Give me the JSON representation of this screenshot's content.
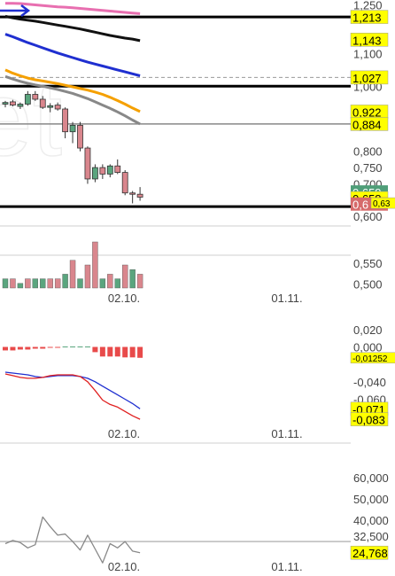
{
  "chart_data": [
    {
      "panel": "price",
      "type": "candlestick",
      "axis_ticks": [
        "1,250",
        "1,100",
        "1,000",
        "0,800",
        "0,750",
        "0,700",
        "0,600"
      ],
      "scale_labels": [
        {
          "text": "1,250",
          "y": 1.25
        },
        {
          "text": "1,100",
          "y": 1.1
        },
        {
          "text": "1,000",
          "y": 1.0
        },
        {
          "text": "0,800",
          "y": 0.8
        },
        {
          "text": "0,750",
          "y": 0.75
        },
        {
          "text": "0,700",
          "y": 0.7
        },
        {
          "text": "0,600",
          "y": 0.6
        }
      ],
      "ylim": [
        0.595,
        1.265
      ],
      "candles": [
        {
          "o": 0.945,
          "h": 0.955,
          "l": 0.935,
          "c": 0.95
        },
        {
          "o": 0.952,
          "h": 0.958,
          "l": 0.938,
          "c": 0.942
        },
        {
          "o": 0.938,
          "h": 0.95,
          "l": 0.93,
          "c": 0.945
        },
        {
          "o": 0.945,
          "h": 0.985,
          "l": 0.94,
          "c": 0.975
        },
        {
          "o": 0.975,
          "h": 0.985,
          "l": 0.955,
          "c": 0.96
        },
        {
          "o": 0.96,
          "h": 0.97,
          "l": 0.93,
          "c": 0.935
        },
        {
          "o": 0.935,
          "h": 0.948,
          "l": 0.92,
          "c": 0.94
        },
        {
          "o": 0.942,
          "h": 0.95,
          "l": 0.925,
          "c": 0.93
        },
        {
          "o": 0.93,
          "h": 0.935,
          "l": 0.84,
          "c": 0.86
        },
        {
          "o": 0.86,
          "h": 0.89,
          "l": 0.825,
          "c": 0.88
        },
        {
          "o": 0.88,
          "h": 0.89,
          "l": 0.8,
          "c": 0.81
        },
        {
          "o": 0.81,
          "h": 0.815,
          "l": 0.7,
          "c": 0.715
        },
        {
          "o": 0.715,
          "h": 0.76,
          "l": 0.705,
          "c": 0.75
        },
        {
          "o": 0.75,
          "h": 0.76,
          "l": 0.715,
          "c": 0.73
        },
        {
          "o": 0.73,
          "h": 0.76,
          "l": 0.72,
          "c": 0.755
        },
        {
          "o": 0.755,
          "h": 0.775,
          "l": 0.73,
          "c": 0.735
        },
        {
          "o": 0.735,
          "h": 0.742,
          "l": 0.665,
          "c": 0.672
        },
        {
          "o": 0.672,
          "h": 0.678,
          "l": 0.64,
          "c": 0.668
        },
        {
          "o": 0.668,
          "h": 0.69,
          "l": 0.648,
          "c": 0.659
        }
      ],
      "horizontal_lines": [
        {
          "y": 1.213,
          "color": "#000000",
          "style": "solid-thick"
        },
        {
          "y": 1.0,
          "color": "#000000",
          "style": "solid-thick"
        },
        {
          "y": 0.884,
          "color": "#888888",
          "style": "solid"
        },
        {
          "y": 1.027,
          "color": "#999999",
          "style": "dashed"
        },
        {
          "y": 0.63,
          "color": "#000000",
          "style": "solid-thick"
        }
      ],
      "moving_averages": [
        {
          "color": "#e86fb0",
          "values": [
            1.255,
            1.255,
            1.254,
            1.252,
            1.25,
            1.248,
            1.246,
            1.244,
            1.243,
            1.241,
            1.239,
            1.237,
            1.235,
            1.233,
            1.231,
            1.229,
            1.227,
            1.225,
            1.223
          ]
        },
        {
          "color": "#111111",
          "values": [
            1.215,
            1.21,
            1.206,
            1.203,
            1.2,
            1.196,
            1.192,
            1.188,
            1.184,
            1.18,
            1.176,
            1.171,
            1.166,
            1.161,
            1.156,
            1.152,
            1.148,
            1.145,
            1.14
          ]
        },
        {
          "color": "#1f2fd0",
          "values": [
            1.16,
            1.152,
            1.143,
            1.134,
            1.126,
            1.118,
            1.11,
            1.102,
            1.095,
            1.088,
            1.081,
            1.074,
            1.068,
            1.062,
            1.056,
            1.05,
            1.044,
            1.038,
            1.032
          ]
        },
        {
          "color": "#f5a000",
          "values": [
            1.05,
            1.04,
            1.032,
            1.025,
            1.02,
            1.016,
            1.012,
            1.008,
            1.003,
            0.998,
            0.993,
            0.988,
            0.982,
            0.975,
            0.966,
            0.956,
            0.945,
            0.933,
            0.922
          ]
        },
        {
          "color": "#888888",
          "values": [
            1.03,
            1.022,
            1.015,
            1.009,
            1.004,
            1.0,
            0.995,
            0.99,
            0.984,
            0.978,
            0.97,
            0.962,
            0.952,
            0.942,
            0.932,
            0.921,
            0.909,
            0.896,
            0.884
          ]
        }
      ],
      "value_tags": [
        {
          "text": "1,213",
          "y": 1.213,
          "bg": "#ffff00",
          "fg": "#000000"
        },
        {
          "text": "1,143",
          "y": 1.143,
          "bg": "#ffff00",
          "fg": "#000000"
        },
        {
          "text": "1,027",
          "y": 1.027,
          "bg": "#ffff00",
          "fg": "#000000"
        },
        {
          "text": "0,922",
          "y": 0.922,
          "bg": "#ffff00",
          "fg": "#000000"
        },
        {
          "text": "0,884",
          "y": 0.884,
          "bg": "#ffff00",
          "fg": "#000000"
        },
        {
          "text": "0,659",
          "y": 0.675,
          "bg": "#4f9e78",
          "fg": "#ffffff"
        },
        {
          "text": "0,658",
          "y": 0.656,
          "bg": "#ffff00",
          "fg": "#000000"
        },
        {
          "text": "0,6",
          "y": 0.638,
          "bg": "#d66a6a",
          "fg": "#ffffff"
        },
        {
          "text": "0,63",
          "y": 0.641,
          "bg": "#ffff00",
          "fg": "#000000",
          "small": true
        }
      ]
    },
    {
      "panel": "volume",
      "type": "bar",
      "axis_ticks": [
        "0,550",
        "0,500"
      ],
      "scale_labels": [
        {
          "text": "0,550",
          "y": 0.55
        },
        {
          "text": "0,500",
          "y": 0.5
        }
      ],
      "ylim": [
        0.48,
        0.62
      ],
      "values": [
        2,
        2,
        1,
        2,
        2,
        2,
        2,
        2,
        3,
        6,
        2,
        5,
        10,
        2,
        3,
        2,
        5,
        4,
        3
      ],
      "colors": [
        "g",
        "r",
        "g",
        "r",
        "g",
        "g",
        "r",
        "r",
        "g",
        "r",
        "g",
        "r",
        "r",
        "g",
        "r",
        "g",
        "r",
        "g",
        "r"
      ],
      "xlabels": [
        "02.10.",
        "01.11."
      ]
    },
    {
      "panel": "macd",
      "type": "line",
      "axis_ticks": [
        "0,020",
        "0,000",
        "-0,040",
        "-0,060"
      ],
      "scale_labels": [
        {
          "text": "0,020",
          "y": 0.02
        },
        {
          "text": "0,000",
          "y": 0.0
        },
        {
          "text": "-0,040",
          "y": -0.04
        },
        {
          "text": "-0,060",
          "y": -0.06
        }
      ],
      "ylim": [
        -0.09,
        0.03
      ],
      "histogram": [
        -0.004,
        -0.004,
        -0.003,
        -0.003,
        -0.002,
        -0.002,
        -0.001,
        -0.001,
        0.0,
        0.0,
        0.0,
        0.0,
        -0.006,
        -0.011,
        -0.011,
        -0.011,
        -0.012,
        -0.012,
        -0.0125
      ],
      "series": [
        {
          "color": "#1f2fd0",
          "values": [
            -0.029,
            -0.03,
            -0.031,
            -0.032,
            -0.034,
            -0.035,
            -0.034,
            -0.033,
            -0.033,
            -0.033,
            -0.034,
            -0.036,
            -0.04,
            -0.045,
            -0.05,
            -0.055,
            -0.06,
            -0.065,
            -0.071
          ]
        },
        {
          "color": "#e02020",
          "values": [
            -0.031,
            -0.033,
            -0.035,
            -0.036,
            -0.036,
            -0.035,
            -0.033,
            -0.032,
            -0.032,
            -0.032,
            -0.034,
            -0.04,
            -0.05,
            -0.061,
            -0.066,
            -0.069,
            -0.074,
            -0.079,
            -0.083
          ]
        }
      ],
      "value_tags": [
        {
          "text": "-0,01252",
          "y": -0.0125,
          "bg": "#ffff00",
          "fg": "#000000",
          "small": true
        },
        {
          "text": "-0,071",
          "y": -0.071,
          "bg": "#ffff00",
          "fg": "#000000"
        },
        {
          "text": "-0,083",
          "y": -0.083,
          "bg": "#ffff00",
          "fg": "#000000"
        }
      ],
      "xlabels": [
        "02.10.",
        "01.11."
      ]
    },
    {
      "panel": "oscillator",
      "type": "line",
      "axis_ticks": [
        "60,000",
        "50,000",
        "40,000",
        "32,500"
      ],
      "scale_labels": [
        {
          "text": "60,000",
          "y": 60.0
        },
        {
          "text": "50,000",
          "y": 50.0
        },
        {
          "text": "40,000",
          "y": 40.0
        },
        {
          "text": "32,500",
          "y": 32.5
        }
      ],
      "ylim": [
        18,
        72
      ],
      "reference_line": 30.0,
      "series": [
        {
          "color": "#888888",
          "values": [
            29.0,
            30.5,
            29.5,
            27.0,
            28.5,
            41.5,
            37.0,
            33.0,
            33.5,
            30.0,
            26.0,
            33.0,
            26.5,
            20.0,
            29.0,
            27.0,
            30.0,
            25.5,
            24.768
          ]
        }
      ],
      "value_tags": [
        {
          "text": "24,768",
          "y": 24.768,
          "bg": "#ffff00",
          "fg": "#000000"
        }
      ],
      "xlabels": [
        "02.10.",
        "01.11."
      ]
    }
  ]
}
